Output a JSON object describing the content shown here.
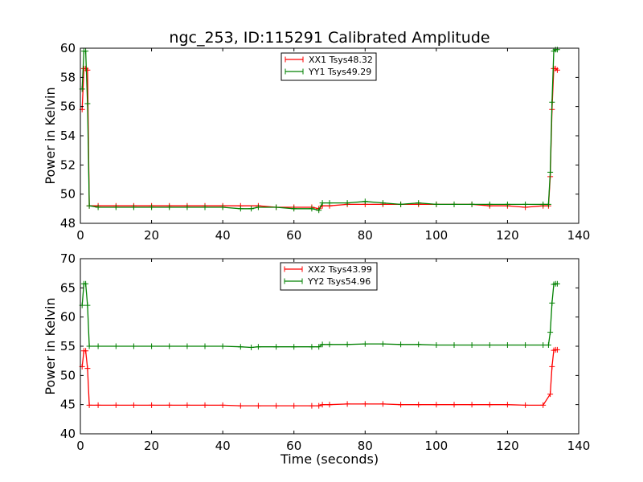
{
  "chart_data": [
    {
      "type": "line",
      "title": "ngc_253, ID:115291 Calibrated Amplitude",
      "xlabel": "",
      "ylabel": "Power in Kelvin",
      "xlim": [
        0,
        140
      ],
      "ylim": [
        48,
        60
      ],
      "xticks": [
        "0",
        "20",
        "40",
        "60",
        "80",
        "100",
        "120",
        "140"
      ],
      "yticks": [
        "48",
        "50",
        "52",
        "54",
        "56",
        "58",
        "60"
      ],
      "legend_position": "top-center",
      "series": [
        {
          "name": "XX1 Tsys48.32",
          "color": "#ff0000",
          "x": [
            0.5,
            1,
            1.5,
            2,
            2.5,
            5,
            10,
            15,
            20,
            25,
            30,
            35,
            40,
            45,
            50,
            55,
            60,
            65,
            67,
            68,
            70,
            75,
            80,
            85,
            90,
            95,
            100,
            105,
            110,
            115,
            120,
            125,
            130,
            131.5,
            132,
            132.5,
            133,
            133.5,
            134
          ],
          "y": [
            55.8,
            58.6,
            58.6,
            58.5,
            49.2,
            49.2,
            49.2,
            49.2,
            49.2,
            49.2,
            49.2,
            49.2,
            49.2,
            49.2,
            49.2,
            49.1,
            49.1,
            49.1,
            49.0,
            49.2,
            49.2,
            49.3,
            49.3,
            49.3,
            49.3,
            49.3,
            49.3,
            49.3,
            49.3,
            49.2,
            49.2,
            49.1,
            49.2,
            49.2,
            51.2,
            55.8,
            58.6,
            58.6,
            58.5
          ]
        },
        {
          "name": "YY1 Tsys49.29",
          "color": "#008000",
          "x": [
            0.5,
            1,
            1.5,
            2,
            2.5,
            5,
            10,
            15,
            20,
            25,
            30,
            35,
            40,
            45,
            48,
            50,
            55,
            60,
            65,
            67,
            68,
            70,
            75,
            80,
            85,
            90,
            95,
            100,
            105,
            110,
            115,
            120,
            125,
            130,
            131.5,
            132,
            132.5,
            133,
            133.5,
            134
          ],
          "y": [
            57.2,
            59.8,
            59.8,
            56.2,
            49.2,
            49.1,
            49.1,
            49.1,
            49.1,
            49.1,
            49.1,
            49.1,
            49.1,
            49.0,
            49.0,
            49.1,
            49.1,
            49.0,
            49.0,
            48.9,
            49.4,
            49.4,
            49.4,
            49.5,
            49.4,
            49.3,
            49.4,
            49.3,
            49.3,
            49.3,
            49.3,
            49.3,
            49.3,
            49.3,
            49.3,
            51.5,
            56.3,
            59.8,
            59.9,
            59.9
          ]
        }
      ]
    },
    {
      "type": "line",
      "title": "",
      "xlabel": "Time (seconds)",
      "ylabel": "Power in Kelvin",
      "xlim": [
        0,
        140
      ],
      "ylim": [
        40,
        70
      ],
      "xticks": [
        "0",
        "20",
        "40",
        "60",
        "80",
        "100",
        "120",
        "140"
      ],
      "yticks": [
        "40",
        "45",
        "50",
        "55",
        "60",
        "65",
        "70"
      ],
      "legend_position": "top-center",
      "series": [
        {
          "name": "XX2 Tsys43.99",
          "color": "#ff0000",
          "x": [
            0.5,
            1,
            1.5,
            2,
            2.5,
            5,
            10,
            15,
            20,
            25,
            30,
            35,
            40,
            45,
            50,
            55,
            60,
            65,
            67,
            68,
            70,
            75,
            80,
            85,
            90,
            95,
            100,
            105,
            110,
            115,
            120,
            125,
            130,
            132,
            132.5,
            133,
            133.5,
            134
          ],
          "y": [
            51.5,
            54.2,
            54.2,
            51.2,
            44.9,
            44.9,
            44.9,
            44.9,
            44.9,
            44.9,
            44.9,
            44.9,
            44.9,
            44.8,
            44.8,
            44.8,
            44.8,
            44.8,
            44.8,
            45.0,
            45.0,
            45.1,
            45.1,
            45.1,
            45.0,
            45.0,
            45.0,
            45.0,
            45.0,
            45.0,
            45.0,
            44.9,
            44.9,
            46.8,
            51.5,
            54.3,
            54.4,
            54.4
          ]
        },
        {
          "name": "YY2 Tsys54.96",
          "color": "#008000",
          "x": [
            0.5,
            1,
            1.5,
            2,
            2.5,
            5,
            10,
            15,
            20,
            25,
            30,
            35,
            40,
            45,
            48,
            50,
            55,
            60,
            65,
            67,
            68,
            70,
            75,
            80,
            85,
            90,
            95,
            100,
            105,
            110,
            115,
            120,
            125,
            130,
            131.5,
            132,
            132.5,
            133,
            133.5,
            134
          ],
          "y": [
            62.0,
            65.7,
            65.7,
            62.0,
            55.0,
            55.0,
            55.0,
            55.0,
            55.0,
            55.0,
            55.0,
            55.0,
            55.0,
            54.9,
            54.8,
            54.9,
            54.9,
            54.9,
            54.9,
            54.9,
            55.3,
            55.3,
            55.3,
            55.4,
            55.4,
            55.3,
            55.3,
            55.2,
            55.2,
            55.2,
            55.2,
            55.2,
            55.2,
            55.2,
            55.2,
            57.4,
            62.4,
            65.6,
            65.7,
            65.7
          ]
        }
      ]
    }
  ]
}
